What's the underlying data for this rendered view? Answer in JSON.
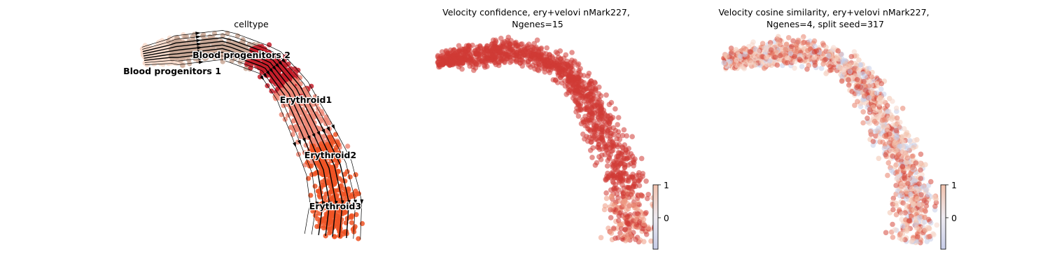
{
  "chart_data": [
    {
      "type": "scatter",
      "title": "celltype",
      "color_by": "category",
      "groups": [
        {
          "label": "Blood progenitors 1",
          "color": "#f9dccc"
        },
        {
          "label": "Blood progenitors 2",
          "color": "#c9a896"
        },
        {
          "label": "Erythroid1",
          "color": "#c41e2a"
        },
        {
          "label": "Erythroid2",
          "color": "#ef8a78"
        },
        {
          "label": "Erythroid3",
          "color": "#ee5324"
        }
      ],
      "overlay": "velocity streamlines with arrowheads",
      "axes": "hidden",
      "legend": "on data"
    },
    {
      "type": "scatter",
      "title": "Velocity confidence, ery+velovi nMark227,\nNgenes=15",
      "color_by": "continuous",
      "colormap": "coolwarm",
      "colorbar": {
        "ticks": [
          "1",
          "0"
        ],
        "high": 1,
        "mid": 0,
        "high_color": "#f2c2ad",
        "low_color": "#c7cde8"
      },
      "typical_value": 0.95,
      "axes": "hidden"
    },
    {
      "type": "scatter",
      "title": "Velocity cosine similarity, ery+velovi nMark227,\nNgenes=4, split seed=317",
      "color_by": "continuous",
      "colormap": "coolwarm",
      "colorbar": {
        "ticks": [
          "1",
          "0"
        ],
        "high": 1,
        "mid": 0,
        "high_color": "#f2c2ad",
        "low_color": "#c7cde8"
      },
      "value_range": [
        -0.3,
        1
      ],
      "axes": "hidden"
    }
  ]
}
